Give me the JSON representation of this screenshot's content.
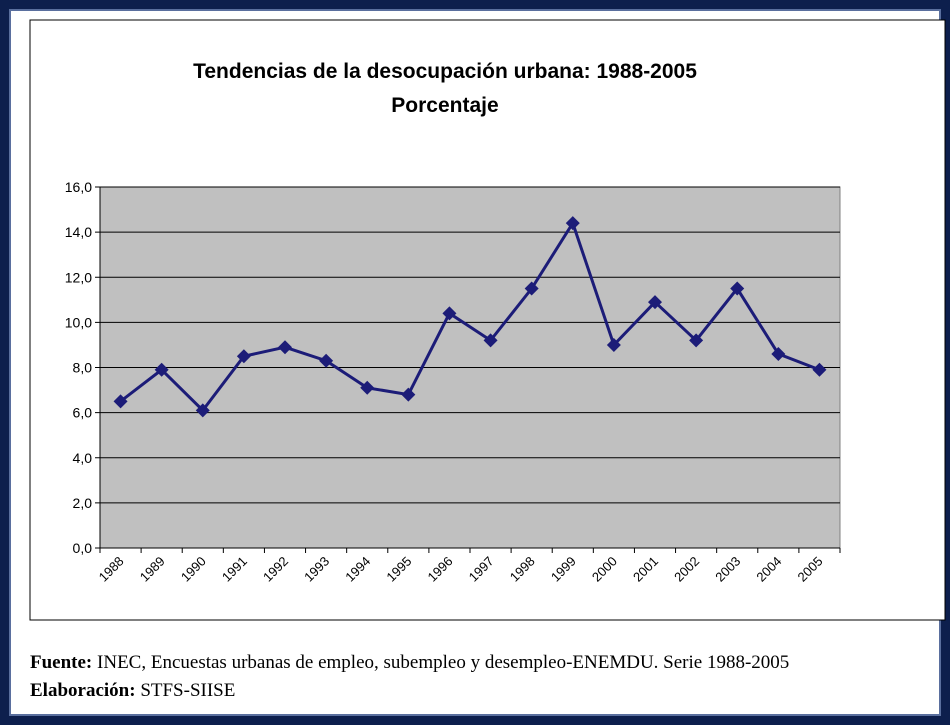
{
  "chart_data": {
    "type": "line",
    "title": "Tendencias de la desocupación urbana: 1988-2005",
    "subtitle": "Porcentaje",
    "categories": [
      "1988",
      "1989",
      "1990",
      "1991",
      "1992",
      "1993",
      "1994",
      "1995",
      "1996",
      "1997",
      "1998",
      "1999",
      "2000",
      "2001",
      "2002",
      "2003",
      "2004",
      "2005"
    ],
    "series": [
      {
        "name": "Desocupación urbana",
        "color": "#1c1c78",
        "values": [
          6.5,
          7.9,
          6.1,
          8.5,
          8.9,
          8.3,
          7.1,
          6.8,
          10.4,
          9.2,
          11.5,
          14.4,
          9.0,
          10.9,
          9.2,
          11.5,
          8.6,
          7.9
        ]
      }
    ],
    "ylim": [
      0,
      16
    ],
    "yticks": [
      {
        "value": 0,
        "label": "0,0"
      },
      {
        "value": 2,
        "label": "2,0"
      },
      {
        "value": 4,
        "label": "4,0"
      },
      {
        "value": 6,
        "label": "6,0"
      },
      {
        "value": 8,
        "label": "8,0"
      },
      {
        "value": 10,
        "label": "10,0"
      },
      {
        "value": 12,
        "label": "12,0"
      },
      {
        "value": 14,
        "label": "14,0"
      },
      {
        "value": 16,
        "label": "16,0"
      }
    ],
    "grid": true,
    "legend": false,
    "plot_background": "#c0c0c0"
  },
  "footer": {
    "source_label": "Fuente:",
    "source_text": "INEC, Encuestas urbanas de empleo, subempleo y desempleo-ENEMDU. Serie 1988-2005",
    "credit_label": "Elaboración:",
    "credit_text": "STFS-SIISE"
  }
}
